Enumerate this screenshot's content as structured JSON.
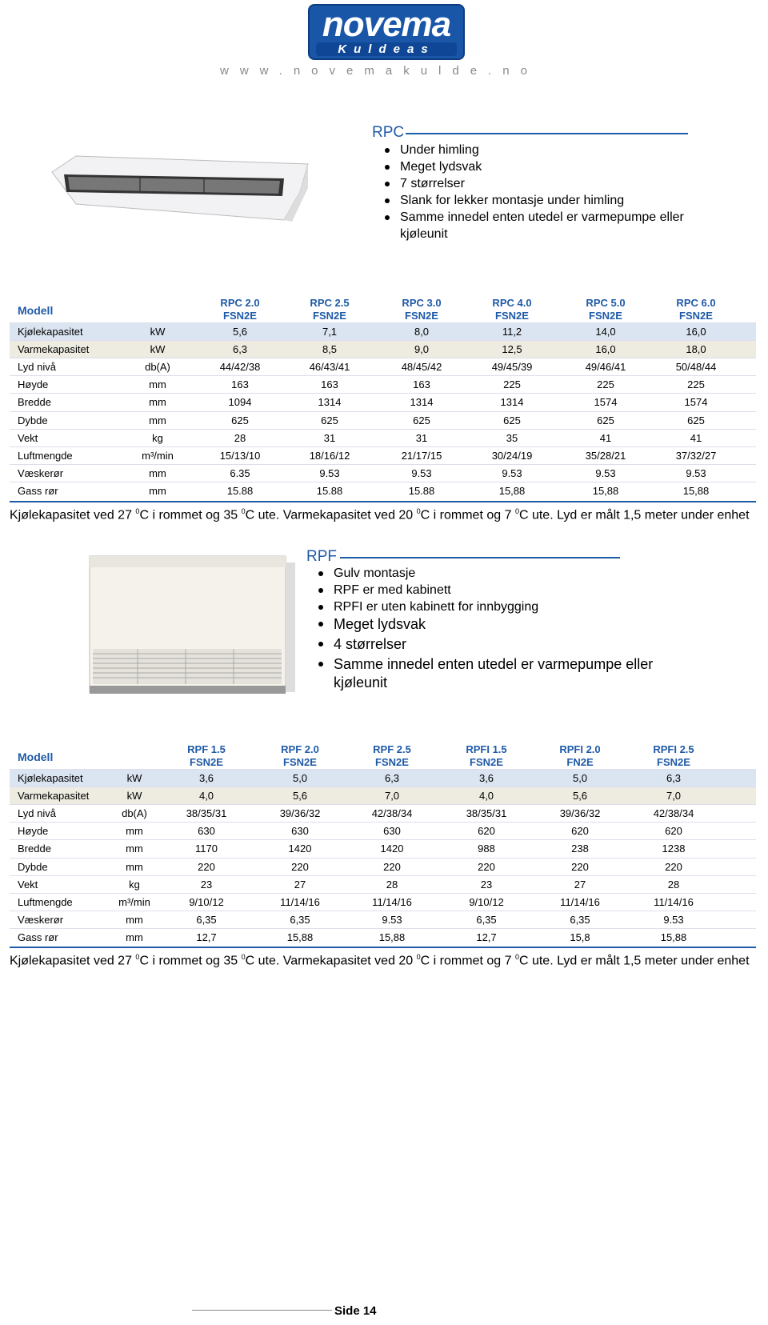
{
  "header": {
    "logo": "novema",
    "logo_sub": "Kuldeas",
    "url": "www.novemakulde.no"
  },
  "sections": [
    {
      "title": "RPC",
      "bullets": [
        "Under himling",
        "Meget lydsvak",
        "7 størrelser",
        "Slank for lekker montasje under himling",
        "Samme innedel enten utedel er varmepumpe eller kjøleunit"
      ],
      "table": {
        "corner": "Modell",
        "models": [
          {
            "name": "RPC 2.0",
            "sub": "FSN2E"
          },
          {
            "name": "RPC 2.5",
            "sub": "FSN2E"
          },
          {
            "name": "RPC 3.0",
            "sub": "FSN2E"
          },
          {
            "name": "RPC 4.0",
            "sub": "FSN2E"
          },
          {
            "name": "RPC 5.0",
            "sub": "FSN2E"
          },
          {
            "name": "RPC 6.0",
            "sub": "FSN2E"
          }
        ],
        "rows": [
          {
            "label": "Kjølekapasitet",
            "unit": "kW",
            "values": [
              "5,6",
              "7,1",
              "8,0",
              "11,2",
              "14,0",
              "16,0"
            ]
          },
          {
            "label": "Varmekapasitet",
            "unit": "kW",
            "values": [
              "6,3",
              "8,5",
              "9,0",
              "12,5",
              "16,0",
              "18,0"
            ]
          },
          {
            "label": "Lyd nivå",
            "unit": "db(A)",
            "values": [
              "44/42/38",
              "46/43/41",
              "48/45/42",
              "49/45/39",
              "49/46/41",
              "50/48/44"
            ]
          },
          {
            "label": "Høyde",
            "unit": "mm",
            "values": [
              "163",
              "163",
              "163",
              "225",
              "225",
              "225"
            ]
          },
          {
            "label": "Bredde",
            "unit": "mm",
            "values": [
              "1094",
              "1314",
              "1314",
              "1314",
              "1574",
              "1574"
            ]
          },
          {
            "label": "Dybde",
            "unit": "mm",
            "values": [
              "625",
              "625",
              "625",
              "625",
              "625",
              "625"
            ]
          },
          {
            "label": "Vekt",
            "unit": "kg",
            "values": [
              "28",
              "31",
              "31",
              "35",
              "41",
              "41"
            ]
          },
          {
            "label": "Luftmengde",
            "unit": "m³/min",
            "values": [
              "15/13/10",
              "18/16/12",
              "21/17/15",
              "30/24/19",
              "35/28/21",
              "37/32/27"
            ]
          },
          {
            "label": "Væskerør",
            "unit": "mm",
            "values": [
              "6.35",
              "9.53",
              "9.53",
              "9.53",
              "9.53",
              "9.53"
            ]
          },
          {
            "label": "Gass rør",
            "unit": "mm",
            "values": [
              "15.88",
              "15.88",
              "15.88",
              "15,88",
              "15,88",
              "15,88"
            ]
          }
        ]
      },
      "note": [
        "Kjølekapasitet ved 27 ",
        "0",
        "C  i rommet og 35 ",
        "0",
        "C ute. Varmekapasitet ved 20 ",
        "0",
        "C i rommet og 7 ",
        "0",
        "C ute. Lyd er målt 1,5 meter under enhet"
      ]
    },
    {
      "title": "RPF",
      "bullets": [
        "Gulv montasje",
        "RPF er med kabinett",
        "RPFI er uten kabinett for innbygging",
        "Meget lydsvak",
        "4 størrelser",
        "Samme innedel enten utedel er varmepumpe eller kjøleunit"
      ],
      "table": {
        "corner": "Modell",
        "models": [
          {
            "name": "RPF 1.5",
            "sub": "FSN2E"
          },
          {
            "name": "RPF 2.0",
            "sub": "FSN2E"
          },
          {
            "name": "RPF 2.5",
            "sub": "FSN2E"
          },
          {
            "name": "RPFI 1.5",
            "sub": "FSN2E"
          },
          {
            "name": "RPFI 2.0",
            "sub": "FN2E"
          },
          {
            "name": "RPFI 2.5",
            "sub": "FSN2E"
          }
        ],
        "rows": [
          {
            "label": "Kjølekapasitet",
            "unit": "kW",
            "values": [
              "3,6",
              "5,0",
              "6,3",
              "3,6",
              "5,0",
              "6,3"
            ]
          },
          {
            "label": "Varmekapasitet",
            "unit": "kW",
            "values": [
              "4,0",
              "5,6",
              "7,0",
              "4,0",
              "5,6",
              "7,0"
            ]
          },
          {
            "label": "Lyd nivå",
            "unit": "db(A)",
            "values": [
              "38/35/31",
              "39/36/32",
              "42/38/34",
              "38/35/31",
              "39/36/32",
              "42/38/34"
            ]
          },
          {
            "label": "Høyde",
            "unit": "mm",
            "values": [
              "630",
              "630",
              "630",
              "620",
              "620",
              "620"
            ]
          },
          {
            "label": "Bredde",
            "unit": "mm",
            "values": [
              "1170",
              "1420",
              "1420",
              "988",
              "238",
              "1238"
            ]
          },
          {
            "label": "Dybde",
            "unit": "mm",
            "values": [
              "220",
              "220",
              "220",
              "220",
              "220",
              "220"
            ]
          },
          {
            "label": "Vekt",
            "unit": "kg",
            "values": [
              "23",
              "27",
              "28",
              "23",
              "27",
              "28"
            ]
          },
          {
            "label": "Luftmengde",
            "unit": "m³/min",
            "values": [
              "9/10/12",
              "11/14/16",
              "11/14/16",
              "9/10/12",
              "11/14/16",
              "11/14/16"
            ]
          },
          {
            "label": "Væskerør",
            "unit": "mm",
            "values": [
              "6,35",
              "6,35",
              "9.53",
              "6,35",
              "6,35",
              "9.53"
            ]
          },
          {
            "label": "Gass rør",
            "unit": "mm",
            "values": [
              "12,7",
              "15,88",
              "15,88",
              "12,7",
              "15,8",
              "15,88"
            ]
          }
        ]
      },
      "note": [
        "Kjølekapasitet ved 27 ",
        "0",
        "C  i rommet og 35 ",
        "0",
        "C ute. Varmekapasitet ved 20 ",
        "0",
        "C i rommet og 7 ",
        "0",
        "C ute. Lyd er målt 1,5 meter under enhet"
      ]
    }
  ],
  "footer": {
    "page": "Side 14"
  }
}
